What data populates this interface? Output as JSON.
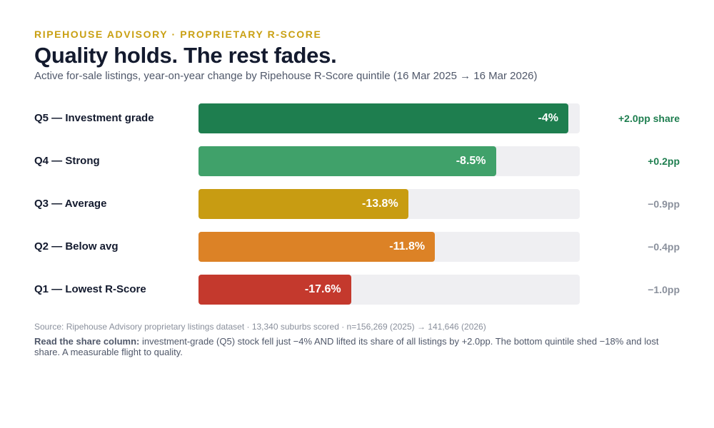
{
  "header": {
    "eyebrow": "RIPEHOUSE ADVISORY · PROPRIETARY R-SCORE",
    "title": "Quality holds. The rest fades.",
    "subtitle": "Active for-sale listings, year-on-year change by Ripehouse R-Score quintile (16 Mar 2025 → 16 Mar 2026)"
  },
  "chart_data": {
    "type": "bar",
    "orientation": "horizontal",
    "categories": [
      "Q5 — Investment grade",
      "Q4 — Strong",
      "Q3 — Average",
      "Q2 — Below avg",
      "Q1 — Lowest R-Score"
    ],
    "series": [
      {
        "values": [
          -4,
          -8.5,
          -13.8,
          -11.8,
          -17.6
        ],
        "labels": [
          "-4%",
          "-8.5%",
          "-13.8%",
          "-11.8%",
          "-17.6%"
        ],
        "colors": [
          "#1e7e4f",
          "#40a16a",
          "#c89c12",
          "#dc8226",
          "#c4392d"
        ]
      }
    ],
    "bar_fill": [
      0.97,
      0.78,
      0.55,
      0.62,
      0.4
    ],
    "share_change": {
      "labels": [
        "+2.0pp share",
        "+0.2pp",
        "−0.9pp",
        "−0.4pp",
        "−1.0pp"
      ],
      "values": [
        2.0,
        0.2,
        -0.9,
        -0.4,
        -1.0
      ],
      "colors": [
        "#1e7e4f",
        "#1e7e4f",
        "#8a909c",
        "#8a909c",
        "#8a909c"
      ]
    }
  },
  "footer": {
    "source": "Source: Ripehouse Advisory proprietary listings dataset · 13,340 suburbs scored · n=156,269 (2025) → 141,646 (2026)",
    "note_lead": "Read the share column:",
    "note_text": " investment-grade (Q5) stock fell just −4% AND lifted its share of all listings by +2.0pp. The bottom quintile shed −18% and lost share. A measurable flight to quality."
  }
}
